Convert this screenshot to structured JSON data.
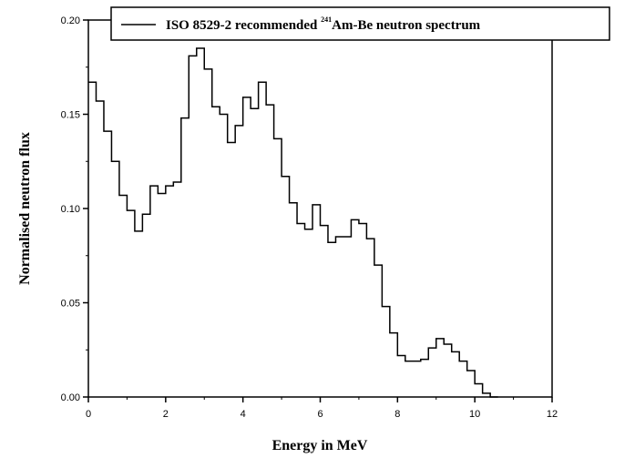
{
  "chart_data": {
    "type": "line",
    "step": true,
    "xlabel": "Energy in MeV",
    "ylabel": "Normalised neutron flux",
    "xlim": [
      0,
      12
    ],
    "ylim": [
      0,
      0.2
    ],
    "xticks": [
      "0",
      "2",
      "4",
      "6",
      "8",
      "10",
      "12"
    ],
    "xtick_values": [
      0,
      2,
      4,
      6,
      8,
      10,
      12
    ],
    "yticks": [
      "0.00",
      "0.05",
      "0.10",
      "0.15",
      "0.20"
    ],
    "ytick_values": [
      0,
      0.05,
      0.1,
      0.15,
      0.2
    ],
    "grid": false,
    "legend_position": "top",
    "series": [
      {
        "name_parts": {
          "before": "ISO 8529-2 recommended ",
          "superscript": "241",
          "after": "Am-Be neutron spectrum"
        },
        "color": "#000000",
        "bin_width": 0.2,
        "x_start": 0,
        "values": [
          0.167,
          0.157,
          0.141,
          0.125,
          0.107,
          0.099,
          0.088,
          0.097,
          0.112,
          0.108,
          0.112,
          0.114,
          0.148,
          0.181,
          0.185,
          0.174,
          0.154,
          0.15,
          0.135,
          0.144,
          0.159,
          0.153,
          0.167,
          0.155,
          0.137,
          0.117,
          0.103,
          0.092,
          0.089,
          0.102,
          0.091,
          0.082,
          0.085,
          0.085,
          0.094,
          0.092,
          0.084,
          0.07,
          0.048,
          0.034,
          0.022,
          0.019,
          0.019,
          0.02,
          0.026,
          0.031,
          0.028,
          0.024,
          0.019,
          0.014,
          0.007,
          0.002,
          0.0
        ]
      }
    ]
  }
}
